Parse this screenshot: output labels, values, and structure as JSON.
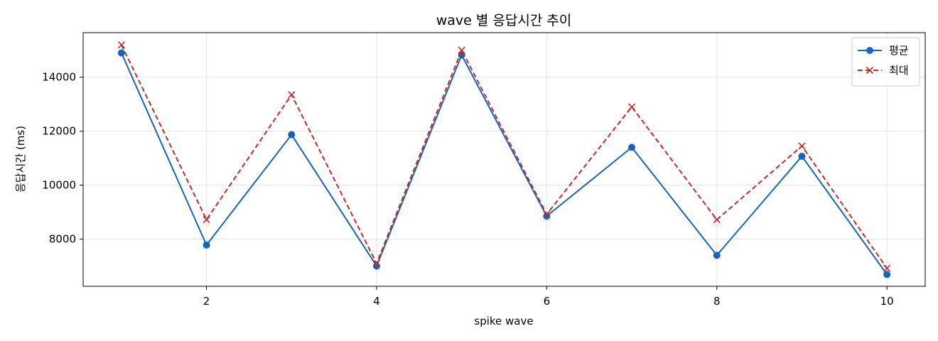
{
  "chart_data": {
    "type": "line",
    "title": "wave 별 응답시간 추이",
    "xlabel": "spike wave",
    "ylabel": "응답시간 (ms)",
    "x": [
      1,
      2,
      3,
      4,
      5,
      6,
      7,
      8,
      9,
      10
    ],
    "xlim": [
      0.55,
      10.45
    ],
    "ylim": [
      6250,
      15650
    ],
    "xticks": [
      2,
      4,
      6,
      8,
      10
    ],
    "yticks": [
      8000,
      10000,
      12000,
      14000
    ],
    "grid": true,
    "legend_position": "top-right",
    "series": [
      {
        "name": "평균",
        "color": "#1565c0",
        "line_style": "solid",
        "marker": "circle",
        "values": [
          14900,
          7780,
          11870,
          7000,
          14820,
          8850,
          11400,
          7400,
          11070,
          6690
        ]
      },
      {
        "name": "최대",
        "color": "#c62828",
        "line_style": "dashed",
        "marker": "x",
        "values": [
          15200,
          8720,
          13350,
          7100,
          15000,
          8920,
          12900,
          8720,
          11450,
          6920
        ]
      }
    ]
  }
}
